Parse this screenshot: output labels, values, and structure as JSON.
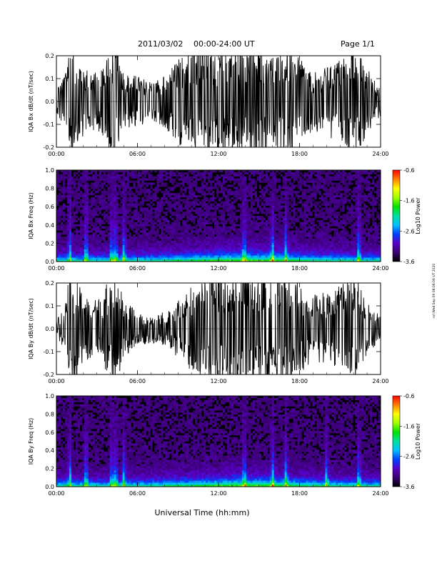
{
  "header": {
    "date": "2011/03/02",
    "time_range": "00:00-24:00 UT",
    "page": "Page 1/1"
  },
  "side_stamp": "nrl Wed Sep 09 08:06:06 UT 2020",
  "xaxis_title": "Universal Time (hh:mm)",
  "chart_data": [
    {
      "type": "line",
      "title": "",
      "ylabel": "IQA Bx dB/dt (nT/sec)",
      "xlabel": "",
      "xlim": [
        "00:00",
        "24:00"
      ],
      "ylim": [
        -0.2,
        0.2
      ],
      "xticks": [
        "00:00",
        "06:00",
        "12:00",
        "18:00",
        "24:00"
      ],
      "yticks": [
        "-0.2",
        "-0.1",
        "0.0",
        "0.1",
        "0.2"
      ],
      "envelope_hours": [
        0,
        0.5,
        1,
        1.2,
        2,
        3,
        3.5,
        4,
        4.4,
        5,
        6,
        7,
        8,
        9,
        10,
        11,
        11.5,
        12,
        13,
        14,
        15,
        16,
        17,
        18,
        19,
        20,
        21,
        22,
        23,
        24
      ],
      "envelope_amplitude": [
        0.05,
        0.08,
        0.2,
        0.2,
        0.12,
        0.1,
        0.14,
        0.2,
        0.2,
        0.1,
        0.09,
        0.07,
        0.09,
        0.15,
        0.2,
        0.2,
        0.2,
        0.18,
        0.2,
        0.2,
        0.2,
        0.16,
        0.2,
        0.15,
        0.1,
        0.12,
        0.15,
        0.2,
        0.12,
        0.05
      ]
    },
    {
      "type": "heatmap",
      "title": "",
      "ylabel": "IQA Bx Freq (Hz)",
      "xlabel": "",
      "xlim": [
        "00:00",
        "24:00"
      ],
      "ylim": [
        0.0,
        1.0
      ],
      "xticks": [
        "00:00",
        "06:00",
        "12:00",
        "18:00",
        "24:00"
      ],
      "yticks": [
        "0.0",
        "0.2",
        "0.4",
        "0.6",
        "0.8",
        "1.0"
      ],
      "colorbar": {
        "label": "Log10 Power",
        "range": [
          -3.6,
          -0.6
        ],
        "ticks": [
          "-0.6",
          "-1.6",
          "-2.6",
          "-3.6"
        ],
        "colors": [
          "#000000",
          "#3a0070",
          "#5a00c8",
          "#0040ff",
          "#00c0ff",
          "#00e0a0",
          "#00e000",
          "#a0ff00",
          "#ffff00",
          "#ff8000",
          "#ff0000"
        ]
      },
      "bursts_hours": [
        1.0,
        2.2,
        4.1,
        4.4,
        5.0,
        13.9,
        16.0,
        17.0,
        22.4
      ]
    },
    {
      "type": "line",
      "title": "",
      "ylabel": "IQA By dB/dt (nT/sec)",
      "xlabel": "",
      "xlim": [
        "00:00",
        "24:00"
      ],
      "ylim": [
        -0.2,
        0.2
      ],
      "xticks": [
        "00:00",
        "06:00",
        "12:00",
        "18:00",
        "24:00"
      ],
      "yticks": [
        "-0.2",
        "-0.1",
        "0.0",
        "0.1",
        "0.2"
      ],
      "envelope_hours": [
        0,
        0.5,
        1,
        1.2,
        2,
        3,
        3.5,
        4,
        4.4,
        5,
        6,
        7,
        8,
        9,
        10,
        11,
        11.5,
        12,
        13,
        14,
        15,
        16,
        17,
        18,
        19,
        20,
        21,
        22,
        23,
        24
      ],
      "envelope_amplitude": [
        0.04,
        0.06,
        0.2,
        0.2,
        0.12,
        0.1,
        0.13,
        0.2,
        0.2,
        0.1,
        0.06,
        0.05,
        0.06,
        0.1,
        0.15,
        0.18,
        0.2,
        0.2,
        0.2,
        0.2,
        0.2,
        0.2,
        0.2,
        0.16,
        0.12,
        0.13,
        0.15,
        0.2,
        0.1,
        0.04
      ]
    },
    {
      "type": "heatmap",
      "title": "",
      "ylabel": "IQA By Freq (Hz)",
      "xlabel": "",
      "xlim": [
        "00:00",
        "24:00"
      ],
      "ylim": [
        0.0,
        1.0
      ],
      "xticks": [
        "00:00",
        "06:00",
        "12:00",
        "18:00",
        "24:00"
      ],
      "yticks": [
        "0.0",
        "0.2",
        "0.4",
        "0.6",
        "0.8",
        "1.0"
      ],
      "colorbar": {
        "label": "Log10 Power",
        "range": [
          -3.6,
          -0.6
        ],
        "ticks": [
          "-0.6",
          "-1.6",
          "-2.6",
          "-3.6"
        ],
        "colors": [
          "#000000",
          "#3a0070",
          "#5a00c8",
          "#0040ff",
          "#00c0ff",
          "#00e0a0",
          "#00e000",
          "#a0ff00",
          "#ffff00",
          "#ff8000",
          "#ff0000"
        ]
      },
      "bursts_hours": [
        1.0,
        2.2,
        4.1,
        4.4,
        5.0,
        13.9,
        16.0,
        17.0,
        20.0,
        22.4
      ]
    }
  ]
}
